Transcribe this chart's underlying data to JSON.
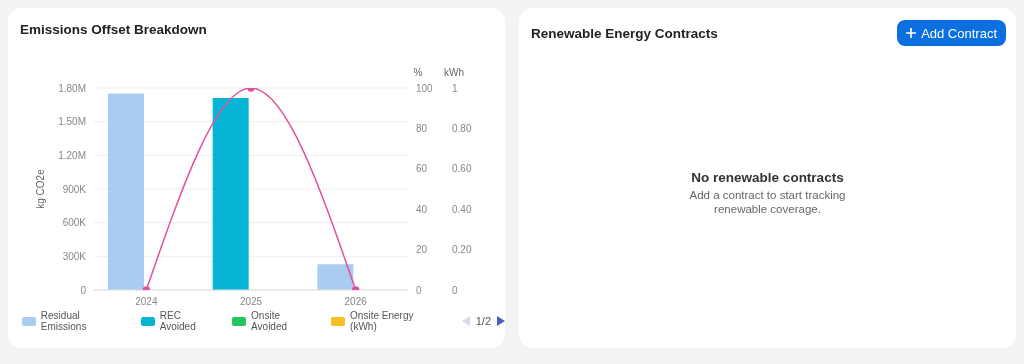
{
  "chart_data": [
    {
      "type": "bar",
      "title": "Emissions Offset Breakdown",
      "ylabel": "kg CO2e",
      "y2label": "%",
      "y3label": "kWh",
      "categories": [
        "2024",
        "2025",
        "2026"
      ],
      "stacked": true,
      "series": [
        {
          "name": "Residual Emissions",
          "color": "#a9cdf1",
          "values": [
            1750000,
            null,
            230000
          ]
        },
        {
          "name": "REC Avoided",
          "color": "#06b4d6",
          "values": [
            null,
            1710000,
            null
          ]
        },
        {
          "name": "Onsite Avoided",
          "color": "#22c55e",
          "values": [
            null,
            null,
            null
          ]
        },
        {
          "name": "Onsite Energy (kWh)",
          "color": "#fbbf24",
          "values": [
            null,
            null,
            null
          ],
          "axis": "y3"
        },
        {
          "type": "line",
          "color": "#e0529c",
          "values": [
            0,
            100,
            0
          ],
          "axis": "y2",
          "marker": "circle"
        }
      ],
      "ylim": [
        0,
        1800000
      ],
      "yticks": [
        0,
        {
          "value": 300000,
          "label": "300K"
        },
        {
          "value": 600000,
          "label": "600K"
        },
        {
          "value": 900000,
          "label": "900K"
        },
        {
          "value": 1200000,
          "label": "1.20M"
        },
        {
          "value": 1500000,
          "label": "1.50M"
        },
        {
          "value": 1800000,
          "label": "1.80M"
        }
      ],
      "y2lim": [
        0,
        100
      ],
      "y2ticks": [
        0,
        20,
        40,
        60,
        80,
        100
      ],
      "y3lim": [
        0,
        1
      ],
      "y3ticks": [
        0,
        {
          "value": 0.2,
          "label": "0.20"
        },
        {
          "value": 0.4,
          "label": "0.40"
        },
        {
          "value": 0.6,
          "label": "0.60"
        },
        {
          "value": 0.8,
          "label": "0.80"
        },
        1
      ],
      "grid": "y",
      "legend": "bottom",
      "annotations": [
        "1/2"
      ]
    },
    {
      "type": "other",
      "title": "Renewable Energy Contracts",
      "annotations": [
        "Add Contract",
        "No renewable contracts",
        "Add a contract to start tracking renewable coverage."
      ]
    }
  ]
}
